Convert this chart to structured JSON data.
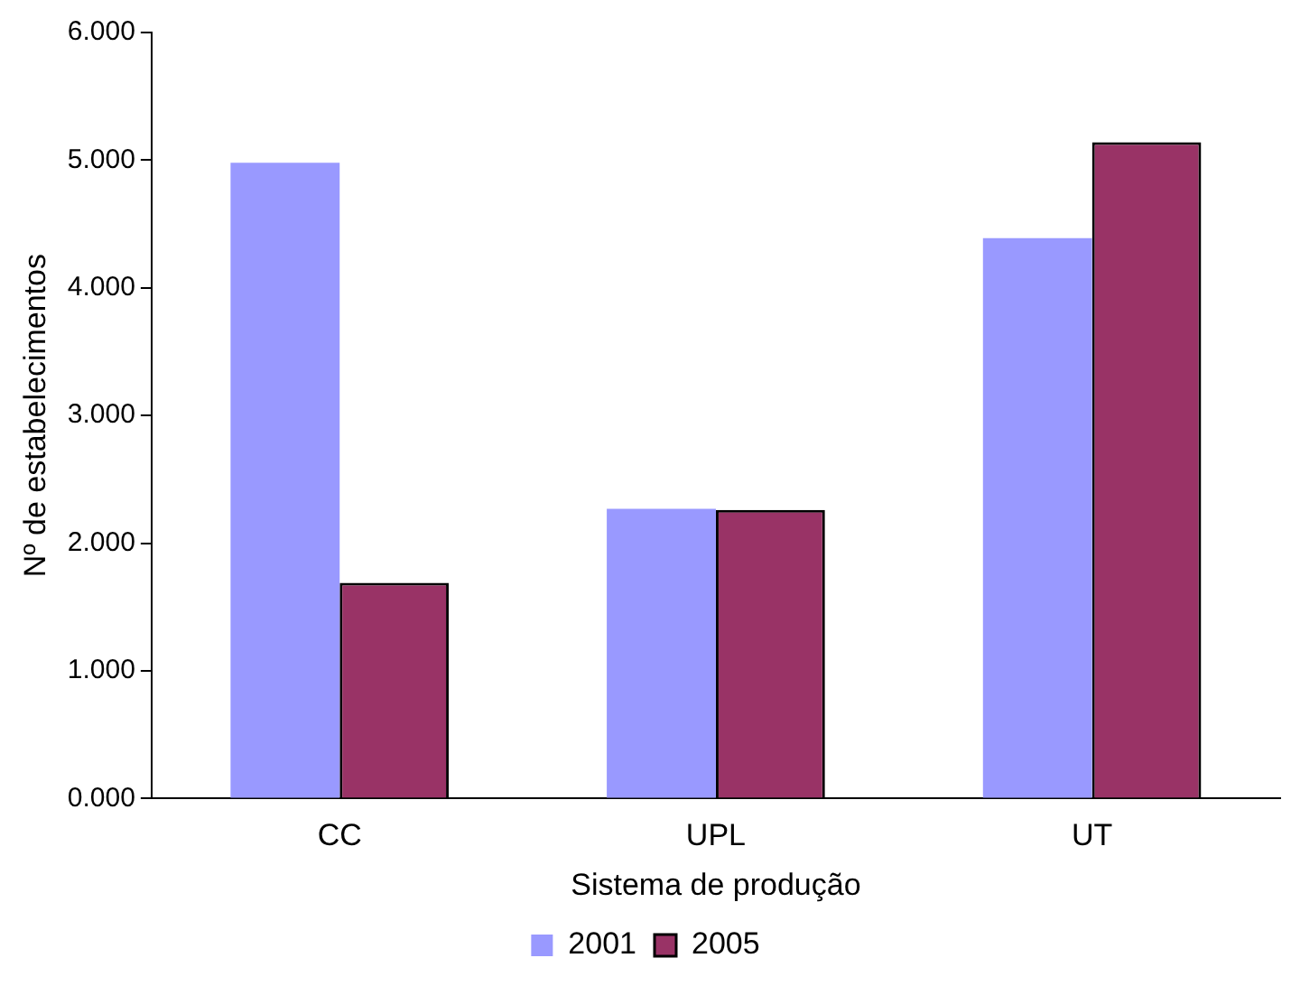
{
  "chart_data": {
    "type": "bar",
    "xlabel": "Sistema de produção",
    "ylabel": "Nº de estabelecimentos",
    "categories": [
      "CC",
      "UPL",
      "UT"
    ],
    "series": [
      {
        "name": "2001",
        "color": "#9999ff",
        "values": [
          4.98,
          2.27,
          4.39
        ]
      },
      {
        "name": "2005",
        "color": "#993366",
        "values": [
          1.69,
          2.26,
          5.14
        ]
      }
    ],
    "ylim": [
      0,
      6
    ],
    "yticks": [
      {
        "value": 0,
        "label": "0.000"
      },
      {
        "value": 1,
        "label": "1.000"
      },
      {
        "value": 2,
        "label": "2.000"
      },
      {
        "value": 3,
        "label": "3.000"
      },
      {
        "value": 4,
        "label": "4.000"
      },
      {
        "value": 5,
        "label": "5.000"
      },
      {
        "value": 6,
        "label": "6.000"
      }
    ],
    "grid": false,
    "legend": "bottom"
  }
}
